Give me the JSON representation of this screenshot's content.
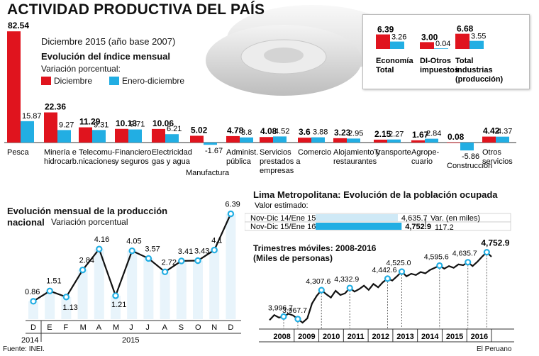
{
  "header": {
    "title": "ACTIVIDAD PRODUCTIVA DEL PAÍS",
    "subtitle": "Diciembre 2015 (año base 2007)",
    "index_title": "Evolución del índice mensual",
    "legend_caption": "Variación porcentual:",
    "legend": [
      {
        "label": "Diciembre",
        "color": "#e0141e"
      },
      {
        "label": "Enero-diciembre",
        "color": "#22aee3"
      }
    ]
  },
  "colors": {
    "red": "#e0141e",
    "blue": "#22aee3",
    "light_blue": "#cfe9f6",
    "gear": "#d9d9d9"
  },
  "chart_data": [
    {
      "type": "bar",
      "categories": [
        "Pesca",
        "Minería e hidrocarb.",
        "Telecomu-nicaciones",
        "Financiero y seguros",
        "Electricidad gas y agua",
        "Manufactura",
        "Administ. pública",
        "Servicios prestados a empresas",
        "Comercio",
        "Alojamiento y restaurantes",
        "Transporte",
        "Agrope-cuario",
        "Construcción",
        "Otros servicios"
      ],
      "series": [
        {
          "name": "Diciembre",
          "values": [
            82.54,
            22.36,
            11.29,
            10.13,
            10.06,
            5.02,
            4.78,
            4.08,
            3.6,
            3.23,
            2.15,
            1.67,
            0.08,
            4.42
          ]
        },
        {
          "name": "Enero-diciembre",
          "values": [
            15.87,
            9.27,
            9.31,
            9.71,
            6.21,
            -1.67,
            3.8,
            4.52,
            3.88,
            2.95,
            2.27,
            2.84,
            -5.86,
            4.37
          ]
        }
      ],
      "labels": {
        "dec": [
          "82.54",
          "22.36",
          "11.29",
          "10.13",
          "10.06",
          "5.02",
          "4.78",
          "4.08",
          "3.6",
          "3.23",
          "2.15",
          "1.67",
          "0.08",
          "4.42"
        ],
        "ytd": [
          "15.87",
          "9.27",
          "9.31",
          "9.71",
          "6.21",
          "-1.67",
          "3.8",
          "4.52",
          "3.88",
          "2.95",
          "2.27",
          "2.84",
          "-5.86",
          "4.37"
        ]
      },
      "cat_lines": [
        [
          "Pesca"
        ],
        [
          "Minería e",
          "hidrocarb."
        ],
        [
          "Telecomu-",
          "nicaciones"
        ],
        [
          "Financiero",
          "y seguros"
        ],
        [
          "Electricidad",
          "gas y agua"
        ],
        [
          "Manufactura"
        ],
        [
          "Administ.",
          "pública"
        ],
        [
          "Servicios",
          "prestados a",
          "empresas"
        ],
        [
          "Comercio"
        ],
        [
          "Alojamiento y",
          "restaurantes"
        ],
        [
          "Transporte"
        ],
        [
          "Agrope-",
          "cuario"
        ],
        [
          "Construcción"
        ],
        [
          "Otros",
          "servicios"
        ]
      ]
    },
    {
      "type": "bar",
      "categories": [
        "Economía Total",
        "DI-Otros impuestos",
        "Total industrias (producción)"
      ],
      "series": [
        {
          "name": "Diciembre",
          "values": [
            6.39,
            3.0,
            6.68
          ]
        },
        {
          "name": "Enero-diciembre",
          "values": [
            3.26,
            0.04,
            3.55
          ]
        }
      ],
      "labels": {
        "dec": [
          "6.39",
          "3.00",
          "6.68"
        ],
        "ytd": [
          "3.26",
          "0.04",
          "3.55"
        ]
      },
      "cat_lines": [
        [
          "Economía",
          "Total"
        ],
        [
          "DI-Otros",
          "impuestos"
        ],
        [
          "Total",
          "industrias",
          "(producción)"
        ]
      ]
    },
    {
      "type": "line",
      "title": "Evolución mensual de la producción nacional",
      "subtitle": "Variación porcentual",
      "x": [
        "D",
        "E",
        "F",
        "M",
        "A",
        "M",
        "J",
        "J",
        "A",
        "S",
        "O",
        "N",
        "D"
      ],
      "years": [
        "2014",
        "2015"
      ],
      "values": [
        0.86,
        1.51,
        1.13,
        2.84,
        4.16,
        1.21,
        4.05,
        3.57,
        2.72,
        3.41,
        3.43,
        4.1,
        6.39
      ],
      "labels": [
        "0.86",
        "1.51",
        "1.13",
        "2.84",
        "4.16",
        "1.21",
        "4.05",
        "3.57",
        "2.72",
        "3.41",
        "3.43",
        "4.1",
        "6.39"
      ]
    },
    {
      "type": "bar",
      "title": "Lima Metropolitana: Evolución de la población ocupada",
      "caption": "Valor estimado:",
      "categories": [
        "Nov-Dic 14/Ene 15",
        "Nov-Dic 15/Ene 16"
      ],
      "values": [
        4635.7,
        4752.9
      ],
      "labels": [
        "4,635.7",
        "4,752.9"
      ],
      "var_label": "Var. (en miles)",
      "var_value": "117.2"
    },
    {
      "type": "line",
      "title": "Trimestres móviles: 2008-2016",
      "subtitle": "(Miles de personas)",
      "years": [
        "2008",
        "2009",
        "2010",
        "2011",
        "2012",
        "2013",
        "2014",
        "2015",
        "2016"
      ],
      "ylim": [
        3900,
        4800
      ],
      "values": [
        3955,
        4015,
        3985,
        3996.7,
        4030,
        4010,
        3967.7,
        3925,
        3975,
        4150,
        4240,
        4307.6,
        4260,
        4220,
        4300,
        4250,
        4270,
        4332.9,
        4290,
        4320,
        4360,
        4310,
        4380,
        4340,
        4400,
        4442.6,
        4420,
        4470,
        4525.0,
        4470,
        4500,
        4485,
        4520,
        4505,
        4545,
        4570,
        4595.6,
        4560,
        4590,
        4570,
        4610,
        4600,
        4635.7,
        4590,
        4640,
        4700,
        4752.9,
        4700
      ],
      "annotations": [
        {
          "index": 3,
          "label": "3,996.7"
        },
        {
          "index": 6,
          "label": "3,967.7"
        },
        {
          "index": 11,
          "label": "4,307.6"
        },
        {
          "index": 17,
          "label": "4,332.9"
        },
        {
          "index": 25,
          "label": "4,442.6"
        },
        {
          "index": 28,
          "label": "4,525.0"
        },
        {
          "index": 36,
          "label": "4,595.6"
        },
        {
          "index": 42,
          "label": "4,635.7"
        },
        {
          "index": 46,
          "label": "4,752.9"
        }
      ]
    }
  ],
  "footer": {
    "source": "Fuente: INEI.",
    "credit": "El Peruano"
  }
}
